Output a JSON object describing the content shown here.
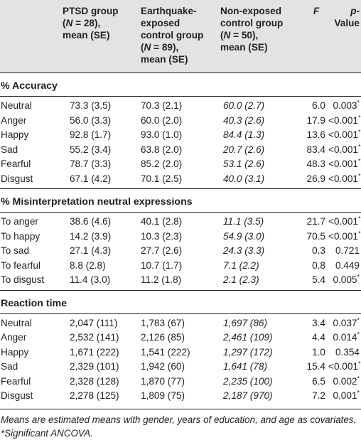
{
  "header": {
    "col0": "",
    "col1": [
      "PTSD group",
      "(N = 28),",
      "mean (SE)"
    ],
    "col2": [
      "Earthquake-",
      "exposed",
      "control group",
      "(N = 89),",
      "mean (SE)"
    ],
    "col3": [
      "Non-exposed",
      "control group",
      "(N = 50),",
      "mean (SE)"
    ],
    "col4": "F",
    "col5": "p-Value"
  },
  "sections": [
    {
      "title": "% Accuracy",
      "rows": [
        {
          "label": "Neutral",
          "ptsd": "73.3 (3.5)",
          "exposed": "70.3 (2.1)",
          "nonexposed": "60.0 (2.7)",
          "f": "6.0",
          "p": "0.003*"
        },
        {
          "label": "Anger",
          "ptsd": "56.0 (3.3)",
          "exposed": "60.0 (2.0)",
          "nonexposed": "40.3 (2.6)",
          "f": "17.9",
          "p": "<0.001*"
        },
        {
          "label": "Happy",
          "ptsd": "92.8 (1.7)",
          "exposed": "93.0 (1.0)",
          "nonexposed": "84.4 (1.3)",
          "f": "13.6",
          "p": "<0.001*"
        },
        {
          "label": "Sad",
          "ptsd": "55.2 (3.4)",
          "exposed": "63.8 (2.0)",
          "nonexposed": "20.7 (2.6)",
          "f": "83.4",
          "p": "<0.001*"
        },
        {
          "label": "Fearful",
          "ptsd": "78.7 (3.3)",
          "exposed": "85.2 (2.0)",
          "nonexposed": "53.1 (2.6)",
          "f": "48.3",
          "p": "<0.001*"
        },
        {
          "label": "Disgust",
          "ptsd": "67.1 (4.2)",
          "exposed": "70.1 (2.5)",
          "nonexposed": "40.0 (3.1)",
          "f": "26.9",
          "p": "<0.001*"
        }
      ]
    },
    {
      "title": "% Misinterpretation neutral expressions",
      "rows": [
        {
          "label": "To anger",
          "ptsd": "38.6 (4.6)",
          "exposed": "40.1 (2.8)",
          "nonexposed": "11.1 (3.5)",
          "f": "21.7",
          "p": "<0.001*"
        },
        {
          "label": "To happy",
          "ptsd": "14.2 (3.9)",
          "exposed": "10.3 (2.3)",
          "nonexposed": "54.9 (3.0)",
          "f": "70.5",
          "p": "<0.001*"
        },
        {
          "label": "To sad",
          "ptsd": "27.1 (4.3)",
          "exposed": "27.7 (2.6)",
          "nonexposed": "24.3 (3.3)",
          "f": "0.3",
          "p": "0.721"
        },
        {
          "label": "To fearful",
          "ptsd": "8.8 (2.8)",
          "exposed": "10.7 (1.7)",
          "nonexposed": "7.1 (2.2)",
          "f": "0.8",
          "p": "0.449"
        },
        {
          "label": "To disgust",
          "ptsd": "11.4 (3.0)",
          "exposed": "11.2 (1.8)",
          "nonexposed": "2.1 (2.3)",
          "f": "5.4",
          "p": "0.005*"
        }
      ]
    },
    {
      "title": "Reaction time",
      "rows": [
        {
          "label": "Neutral",
          "ptsd": "2,047 (111)",
          "exposed": "1,783 (67)",
          "nonexposed": "1,697 (86)",
          "f": "3.4",
          "p": "0.037*"
        },
        {
          "label": "Anger",
          "ptsd": "2,532 (141)",
          "exposed": "2,126 (85)",
          "nonexposed": "2,461 (109)",
          "f": "4.4",
          "p": "0.014*"
        },
        {
          "label": "Happy",
          "ptsd": "1,671 (222)",
          "exposed": "1,541 (222)",
          "nonexposed": "1,297 (172)",
          "f": "1.0",
          "p": "0.354"
        },
        {
          "label": "Sad",
          "ptsd": "2,329 (101)",
          "exposed": "1,942 (60)",
          "nonexposed": "1,641 (78)",
          "f": "15.4",
          "p": "<0.001*"
        },
        {
          "label": "Fearful",
          "ptsd": "2,328 (128)",
          "exposed": "1,870 (77)",
          "nonexposed": "2,235 (100)",
          "f": "6.5",
          "p": "0.002*"
        },
        {
          "label": "Disgust",
          "ptsd": "2,278 (125)",
          "exposed": "1,809 (75)",
          "nonexposed": "2,187 (970)",
          "f": "7.2",
          "p": "0.001*"
        }
      ]
    }
  ],
  "footnotes": [
    "Means are estimated means with gender, years of education, and age as covariates.",
    "*Significant ANCOVA."
  ],
  "colors": {
    "header_bg": "#e3e3e3",
    "text": "#231f20"
  }
}
